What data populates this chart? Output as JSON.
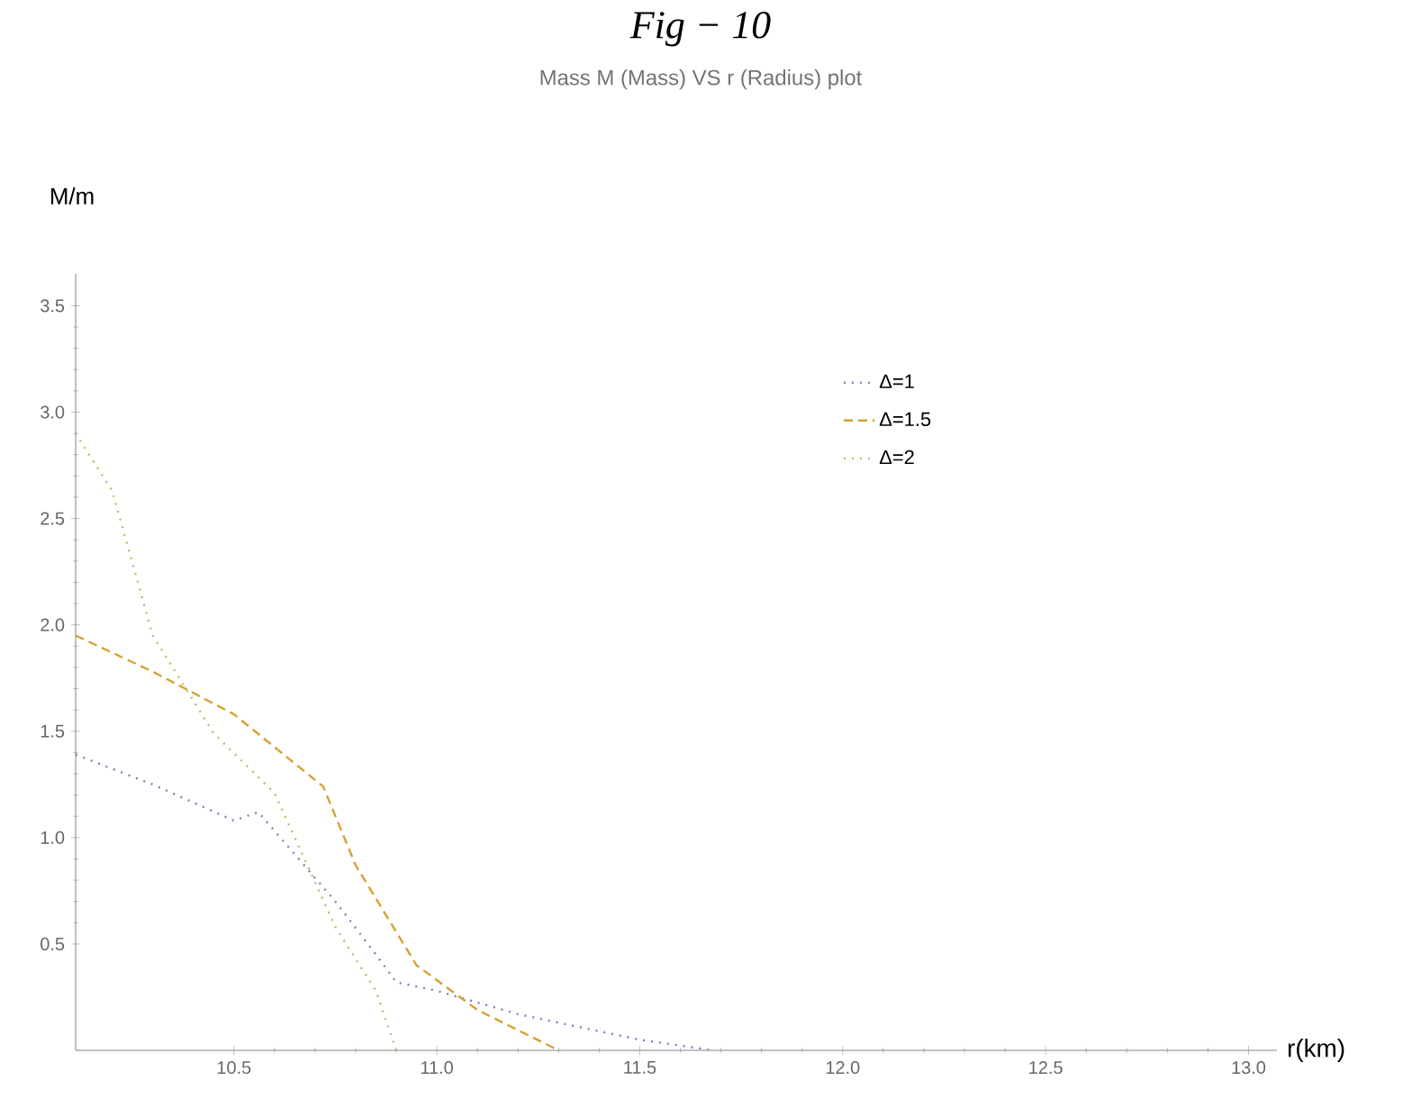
{
  "chart_data": {
    "type": "line",
    "title": "Fig − 10",
    "subtitle": "Mass M (Mass) VS r (Radius) plot",
    "xlabel": "r(km)",
    "ylabel": "M/m",
    "series": [
      {
        "name": "Δ=1",
        "color": "#6f86b8",
        "line_style": "dotted",
        "x": [
          10.11,
          10.3,
          10.5,
          10.56,
          10.75,
          10.85,
          10.9,
          11.0,
          11.2,
          11.5,
          11.68
        ],
        "values": [
          1.39,
          1.25,
          1.08,
          1.12,
          0.7,
          0.45,
          0.32,
          0.28,
          0.17,
          0.05,
          0
        ]
      },
      {
        "name": "Δ=1.5",
        "color": "#d9a030",
        "line_style": "dashed",
        "x": [
          10.11,
          10.3,
          10.5,
          10.72,
          10.8,
          10.95,
          11.1,
          11.3
        ],
        "values": [
          1.95,
          1.78,
          1.58,
          1.24,
          0.87,
          0.4,
          0.19,
          0
        ]
      },
      {
        "name": "Δ=2",
        "color": "#b8bc6c",
        "line_style": "dotted",
        "x": [
          10.11,
          10.2,
          10.3,
          10.45,
          10.6,
          10.75,
          10.85,
          10.9
        ],
        "values": [
          2.9,
          2.63,
          1.95,
          1.49,
          1.21,
          0.58,
          0.28,
          0
        ]
      }
    ],
    "xlim": [
      10.11,
      13.07
    ],
    "ylim": [
      0,
      3.65
    ],
    "xticks": [
      10.5,
      {
        "value": 11.0,
        "label": "11.0"
      },
      11.5,
      {
        "value": 12.0,
        "label": "12.0"
      },
      12.5,
      {
        "value": 13.0,
        "label": "13.0"
      }
    ],
    "yticks": [
      0.5,
      {
        "value": 1.0,
        "label": "1.0"
      },
      1.5,
      {
        "value": 2.0,
        "label": "2.0"
      },
      2.5,
      {
        "value": 3.0,
        "label": "3.0"
      },
      3.5
    ],
    "legend": "top right",
    "grid": false,
    "marker": "none"
  }
}
